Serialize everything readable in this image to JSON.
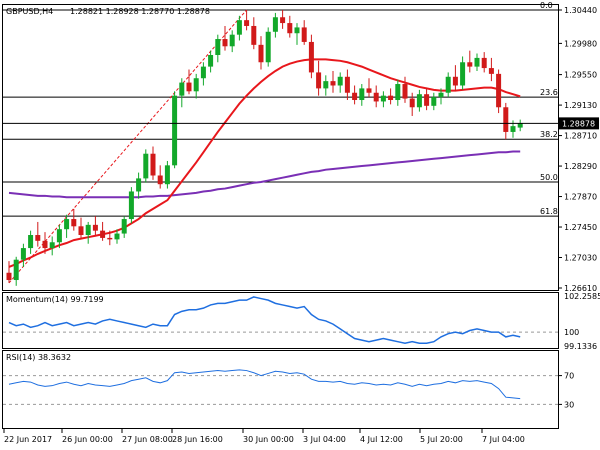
{
  "header": {
    "symbol": "GBPUSD,H4",
    "ohlc": "1.28821 1.28928 1.28770 1.28878"
  },
  "price_axis": {
    "ticks": [
      "1.30440",
      "1.29980",
      "1.29550",
      "1.29130",
      "1.28710",
      "1.28290",
      "1.27870",
      "1.27450",
      "1.27030",
      "1.26610"
    ],
    "ylim": [
      1.2661,
      1.3044
    ],
    "current_price": "1.28878"
  },
  "fibonacci": [
    {
      "label": "0.0",
      "price": 1.3044
    },
    {
      "label": "23.6",
      "price": 1.2924
    },
    {
      "label": "38.2",
      "price": 1.2866
    },
    {
      "label": "50.0",
      "price": 1.2807
    },
    {
      "label": "61.8",
      "price": 1.276
    }
  ],
  "momentum": {
    "label": "Momentum(14) 99.7199",
    "ticks": [
      "102.2585",
      "100",
      "99.1336"
    ],
    "ylim": [
      99.13,
      102.26
    ],
    "level": 100
  },
  "rsi": {
    "label": "RSI(14) 38.3632",
    "ticks": [
      "70",
      "30"
    ],
    "ylim": [
      0,
      100
    ],
    "levels": [
      70,
      30
    ]
  },
  "time_axis": [
    "22 Jun 2017",
    "26 Jun 00:00",
    "27 Jun 08:00",
    "28 Jun 16:00",
    "30 Jun 00:00",
    "3 Jul 04:00",
    "4 Jul 12:00",
    "5 Jul 20:00",
    "7 Jul 04:00"
  ],
  "colors": {
    "bull": "#12a82a",
    "bear": "#d11a1a",
    "sma20": "#e8171c",
    "sma100": "#7a2fb5",
    "oscillator": "#1f6fe0",
    "fib": "#000000"
  },
  "chart_data": {
    "type": "candlestick",
    "candles": [
      [
        1.2682,
        1.2698,
        1.2668,
        1.2672
      ],
      [
        1.2672,
        1.2704,
        1.2664,
        1.27
      ],
      [
        1.27,
        1.2722,
        1.269,
        1.2716
      ],
      [
        1.2716,
        1.274,
        1.2708,
        1.2734
      ],
      [
        1.2734,
        1.2752,
        1.2718,
        1.2726
      ],
      [
        1.2726,
        1.2738,
        1.2708,
        1.2716
      ],
      [
        1.2716,
        1.2732,
        1.2706,
        1.2724
      ],
      [
        1.2724,
        1.2748,
        1.2716,
        1.2742
      ],
      [
        1.2742,
        1.2762,
        1.273,
        1.2756
      ],
      [
        1.2756,
        1.277,
        1.274,
        1.2746
      ],
      [
        1.2746,
        1.2758,
        1.2728,
        1.2734
      ],
      [
        1.2734,
        1.2752,
        1.2722,
        1.2748
      ],
      [
        1.2748,
        1.276,
        1.2734,
        1.274
      ],
      [
        1.274,
        1.2752,
        1.2726,
        1.273
      ],
      [
        1.273,
        1.274,
        1.272,
        1.2728
      ],
      [
        1.2728,
        1.2742,
        1.2722,
        1.2736
      ],
      [
        1.2736,
        1.276,
        1.273,
        1.2756
      ],
      [
        1.2756,
        1.28,
        1.275,
        1.2794
      ],
      [
        1.2794,
        1.282,
        1.2784,
        1.2812
      ],
      [
        1.2812,
        1.2852,
        1.2806,
        1.2846
      ],
      [
        1.2846,
        1.2856,
        1.281,
        1.2816
      ],
      [
        1.2816,
        1.283,
        1.2798,
        1.2804
      ],
      [
        1.2804,
        1.2836,
        1.2798,
        1.283
      ],
      [
        1.283,
        1.2932,
        1.2826,
        1.2926
      ],
      [
        1.2926,
        1.295,
        1.291,
        1.2944
      ],
      [
        1.2944,
        1.2962,
        1.2928,
        1.2932
      ],
      [
        1.2932,
        1.2956,
        1.2922,
        1.295
      ],
      [
        1.295,
        1.2972,
        1.294,
        1.2966
      ],
      [
        1.2966,
        1.2988,
        1.2958,
        1.2982
      ],
      [
        1.2982,
        1.301,
        1.2972,
        1.3004
      ],
      [
        1.3004,
        1.3022,
        1.2988,
        1.2994
      ],
      [
        1.2994,
        1.3016,
        1.2986,
        1.301
      ],
      [
        1.301,
        1.3036,
        1.3002,
        1.303
      ],
      [
        1.303,
        1.3044,
        1.3016,
        1.3022
      ],
      [
        1.3022,
        1.3034,
        1.299,
        1.2996
      ],
      [
        1.2996,
        1.3008,
        1.2962,
        1.2972
      ],
      [
        1.2972,
        1.302,
        1.2966,
        1.3014
      ],
      [
        1.3014,
        1.304,
        1.3006,
        1.3034
      ],
      [
        1.3034,
        1.3044,
        1.3018,
        1.3026
      ],
      [
        1.3026,
        1.3036,
        1.3006,
        1.3012
      ],
      [
        1.3012,
        1.3026,
        1.2996,
        1.302
      ],
      [
        1.302,
        1.303,
        1.2996,
        1.3
      ],
      [
        1.3,
        1.301,
        1.295,
        1.2958
      ],
      [
        1.2958,
        1.2974,
        1.2926,
        1.2936
      ],
      [
        1.2936,
        1.2954,
        1.2926,
        1.2946
      ],
      [
        1.2946,
        1.296,
        1.293,
        1.294
      ],
      [
        1.294,
        1.2958,
        1.293,
        1.2952
      ],
      [
        1.2952,
        1.2962,
        1.292,
        1.293
      ],
      [
        1.293,
        1.294,
        1.2914,
        1.292
      ],
      [
        1.292,
        1.2942,
        1.2912,
        1.2936
      ],
      [
        1.2936,
        1.295,
        1.2924,
        1.293
      ],
      [
        1.293,
        1.294,
        1.291,
        1.2918
      ],
      [
        1.2918,
        1.2932,
        1.291,
        1.2926
      ],
      [
        1.2926,
        1.2936,
        1.2914,
        1.292
      ],
      [
        1.292,
        1.2948,
        1.2912,
        1.2942
      ],
      [
        1.2942,
        1.2952,
        1.2916,
        1.2922
      ],
      [
        1.2922,
        1.293,
        1.2898,
        1.291
      ],
      [
        1.291,
        1.2934,
        1.2904,
        1.2928
      ],
      [
        1.2928,
        1.2936,
        1.2906,
        1.2912
      ],
      [
        1.2912,
        1.293,
        1.2906,
        1.2924
      ],
      [
        1.2924,
        1.2936,
        1.2914,
        1.293
      ],
      [
        1.293,
        1.2958,
        1.2924,
        1.2952
      ],
      [
        1.2952,
        1.2968,
        1.2932,
        1.294
      ],
      [
        1.294,
        1.298,
        1.2934,
        1.2972
      ],
      [
        1.2972,
        1.2988,
        1.2958,
        1.2966
      ],
      [
        1.2966,
        1.2984,
        1.296,
        1.2978
      ],
      [
        1.2978,
        1.2986,
        1.2958,
        1.2964
      ],
      [
        1.2964,
        1.2978,
        1.2946,
        1.2956
      ],
      [
        1.2956,
        1.2962,
        1.2902,
        1.291
      ],
      [
        1.291,
        1.2916,
        1.2866,
        1.2876
      ],
      [
        1.2876,
        1.2892,
        1.2868,
        1.2884
      ],
      [
        1.2882,
        1.2893,
        1.2877,
        1.2888
      ]
    ],
    "sma20": [
      1.269,
      1.2694,
      1.2699,
      1.2703,
      1.2708,
      1.2712,
      1.2716,
      1.272,
      1.2723,
      1.2727,
      1.2729,
      1.2731,
      1.2733,
      1.2735,
      1.2737,
      1.274,
      1.2744,
      1.275,
      1.2756,
      1.2764,
      1.277,
      1.2776,
      1.2782,
      1.2795,
      1.2808,
      1.2821,
      1.2834,
      1.2848,
      1.2862,
      1.2876,
      1.2889,
      1.2902,
      1.2915,
      1.2926,
      1.2936,
      1.2945,
      1.2953,
      1.296,
      1.2966,
      1.297,
      1.2973,
      1.2975,
      1.2976,
      1.2976,
      1.2976,
      1.2975,
      1.2974,
      1.2972,
      1.2969,
      1.2966,
      1.2962,
      1.2958,
      1.2954,
      1.295,
      1.2947,
      1.2944,
      1.2941,
      1.2938,
      1.2936,
      1.2934,
      1.2933,
      1.2933,
      1.2933,
      1.2934,
      1.2935,
      1.2936,
      1.2937,
      1.2937,
      1.2935,
      1.2931,
      1.2928,
      1.2925
    ],
    "sma100": [
      1.2792,
      1.2791,
      1.279,
      1.2789,
      1.2788,
      1.2788,
      1.2787,
      1.2787,
      1.2786,
      1.2786,
      1.2786,
      1.2786,
      1.2786,
      1.2786,
      1.2786,
      1.2786,
      1.2786,
      1.2786,
      1.2786,
      1.2787,
      1.2787,
      1.2788,
      1.2788,
      1.2789,
      1.279,
      1.2791,
      1.2792,
      1.2794,
      1.2795,
      1.2797,
      1.2798,
      1.28,
      1.2802,
      1.2804,
      1.2806,
      1.2807,
      1.2809,
      1.2811,
      1.2813,
      1.2815,
      1.2817,
      1.2819,
      1.2821,
      1.2822,
      1.2824,
      1.2825,
      1.2826,
      1.2827,
      1.2828,
      1.2829,
      1.283,
      1.2831,
      1.2832,
      1.2833,
      1.2834,
      1.2835,
      1.2836,
      1.2837,
      1.2838,
      1.2839,
      1.284,
      1.2841,
      1.2842,
      1.2843,
      1.2844,
      1.2845,
      1.2846,
      1.2847,
      1.2848,
      1.2848,
      1.2849,
      1.2849
    ],
    "momentum_values": [
      100.6,
      100.4,
      100.5,
      100.3,
      100.4,
      100.6,
      100.4,
      100.5,
      100.6,
      100.4,
      100.5,
      100.6,
      100.5,
      100.7,
      100.8,
      100.7,
      100.6,
      100.5,
      100.4,
      100.3,
      100.5,
      100.4,
      100.4,
      101.1,
      101.3,
      101.4,
      101.4,
      101.5,
      101.7,
      101.8,
      101.8,
      101.9,
      102.0,
      102.0,
      102.2,
      102.1,
      102.0,
      101.8,
      101.7,
      101.6,
      101.5,
      101.6,
      101.1,
      100.8,
      100.7,
      100.5,
      100.2,
      99.9,
      99.6,
      99.5,
      99.4,
      99.5,
      99.6,
      99.5,
      99.4,
      99.3,
      99.4,
      99.3,
      99.3,
      99.4,
      99.7,
      99.9,
      100.0,
      99.9,
      100.1,
      100.2,
      100.1,
      100.0,
      100.0,
      99.7,
      99.8,
      99.7
    ],
    "rsi_values": [
      58,
      60,
      62,
      61,
      57,
      55,
      56,
      59,
      61,
      58,
      56,
      59,
      57,
      56,
      55,
      57,
      59,
      63,
      65,
      67,
      62,
      60,
      63,
      74,
      75,
      73,
      74,
      75,
      76,
      77,
      76,
      77,
      78,
      77,
      74,
      70,
      73,
      76,
      75,
      73,
      74,
      72,
      65,
      62,
      62,
      61,
      62,
      59,
      58,
      60,
      59,
      57,
      58,
      57,
      60,
      58,
      55,
      58,
      56,
      58,
      59,
      62,
      60,
      63,
      62,
      63,
      61,
      59,
      52,
      40,
      39,
      38
    ]
  }
}
